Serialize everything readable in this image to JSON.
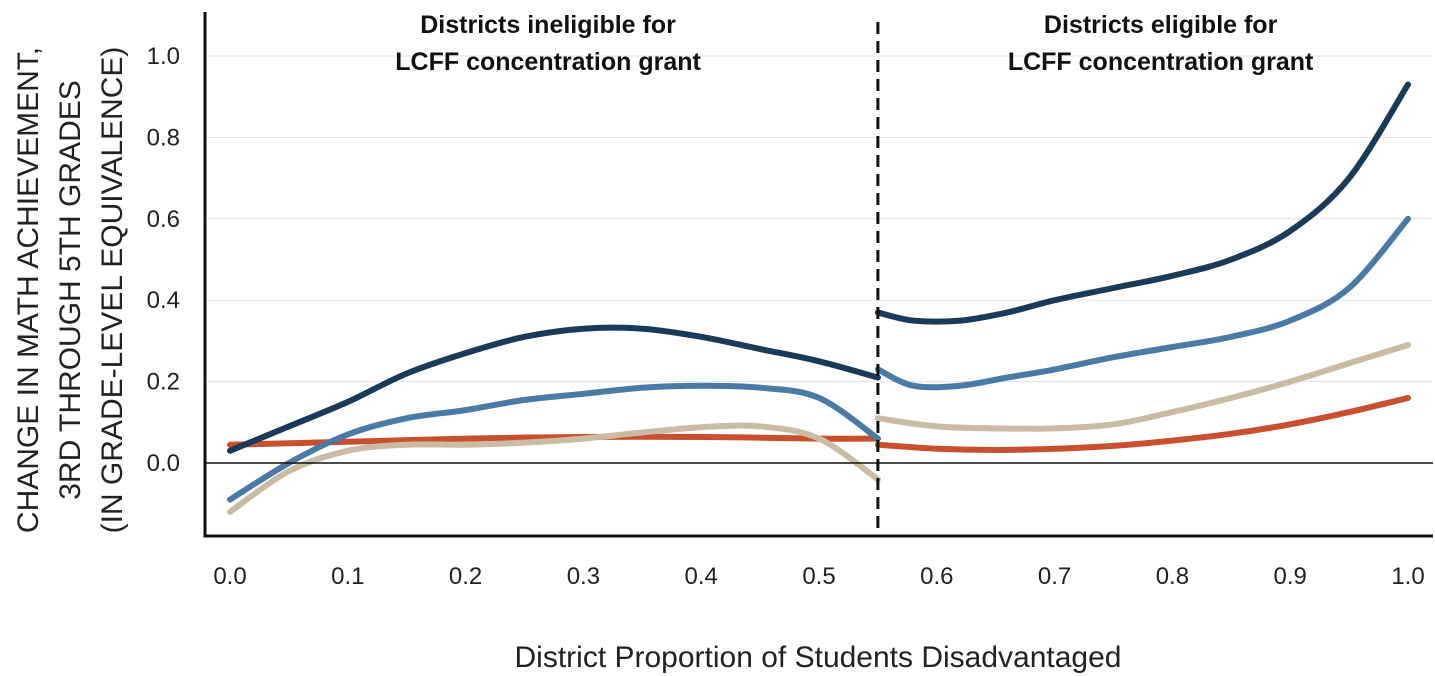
{
  "chart_data": {
    "type": "line",
    "xlabel": "District Proportion of Students Disadvantaged",
    "ylabel_lines": [
      "CHANGE IN MATH ACHIEVEMENT,",
      "3RD THROUGH 5TH GRADES",
      "(IN GRADE-LEVEL EQUIVALENCE)"
    ],
    "xlim": [
      -0.02,
      1.02
    ],
    "ylim": [
      -0.18,
      1.1
    ],
    "x_ticks": [
      "0.0",
      "0.1",
      "0.2",
      "0.3",
      "0.4",
      "0.5",
      "0.6",
      "0.7",
      "0.8",
      "0.9",
      "1.0"
    ],
    "y_ticks": [
      "0.0",
      "0.2",
      "0.4",
      "0.6",
      "0.8",
      "1.0"
    ],
    "grid": "horizontal",
    "threshold": 0.55,
    "annotations": [
      {
        "lines": [
          "Districts ineligible for",
          "LCFF concentration grant"
        ],
        "x": 0.27
      },
      {
        "lines": [
          "Districts eligible for",
          "LCFF concentration grant"
        ],
        "x": 0.79
      }
    ],
    "series": [
      {
        "color": "#1b3a57",
        "segments": [
          {
            "x": [
              0.0,
              0.05,
              0.1,
              0.15,
              0.2,
              0.25,
              0.3,
              0.35,
              0.4,
              0.45,
              0.5,
              0.55
            ],
            "y": [
              0.03,
              0.09,
              0.15,
              0.22,
              0.27,
              0.31,
              0.33,
              0.33,
              0.31,
              0.28,
              0.25,
              0.21
            ]
          },
          {
            "x": [
              0.55,
              0.58,
              0.62,
              0.66,
              0.7,
              0.75,
              0.8,
              0.85,
              0.9,
              0.95,
              1.0
            ],
            "y": [
              0.37,
              0.35,
              0.35,
              0.37,
              0.4,
              0.43,
              0.46,
              0.5,
              0.57,
              0.7,
              0.93
            ]
          }
        ]
      },
      {
        "color": "#4a7aa6",
        "segments": [
          {
            "x": [
              0.0,
              0.05,
              0.1,
              0.15,
              0.2,
              0.25,
              0.3,
              0.35,
              0.4,
              0.45,
              0.5,
              0.55
            ],
            "y": [
              -0.09,
              0.0,
              0.07,
              0.11,
              0.13,
              0.155,
              0.17,
              0.185,
              0.19,
              0.185,
              0.16,
              0.06
            ]
          },
          {
            "x": [
              0.55,
              0.58,
              0.62,
              0.66,
              0.7,
              0.75,
              0.8,
              0.85,
              0.9,
              0.95,
              1.0
            ],
            "y": [
              0.23,
              0.19,
              0.19,
              0.21,
              0.23,
              0.26,
              0.285,
              0.31,
              0.35,
              0.43,
              0.6
            ]
          }
        ]
      },
      {
        "color": "#c9bba4",
        "segments": [
          {
            "x": [
              0.0,
              0.05,
              0.1,
              0.15,
              0.2,
              0.25,
              0.3,
              0.35,
              0.4,
              0.45,
              0.5,
              0.55
            ],
            "y": [
              -0.12,
              -0.02,
              0.03,
              0.045,
              0.045,
              0.05,
              0.06,
              0.075,
              0.088,
              0.09,
              0.06,
              -0.04
            ]
          },
          {
            "x": [
              0.55,
              0.6,
              0.65,
              0.7,
              0.75,
              0.8,
              0.85,
              0.9,
              0.95,
              1.0
            ],
            "y": [
              0.11,
              0.09,
              0.085,
              0.085,
              0.095,
              0.125,
              0.16,
              0.2,
              0.245,
              0.29
            ]
          }
        ]
      },
      {
        "color": "#c8502e",
        "segments": [
          {
            "x": [
              0.0,
              0.1,
              0.2,
              0.3,
              0.4,
              0.5,
              0.55
            ],
            "y": [
              0.045,
              0.052,
              0.06,
              0.064,
              0.064,
              0.06,
              0.06
            ]
          },
          {
            "x": [
              0.55,
              0.6,
              0.65,
              0.7,
              0.75,
              0.8,
              0.85,
              0.9,
              0.95,
              1.0
            ],
            "y": [
              0.045,
              0.035,
              0.032,
              0.035,
              0.042,
              0.055,
              0.072,
              0.095,
              0.125,
              0.16
            ]
          }
        ]
      }
    ]
  }
}
